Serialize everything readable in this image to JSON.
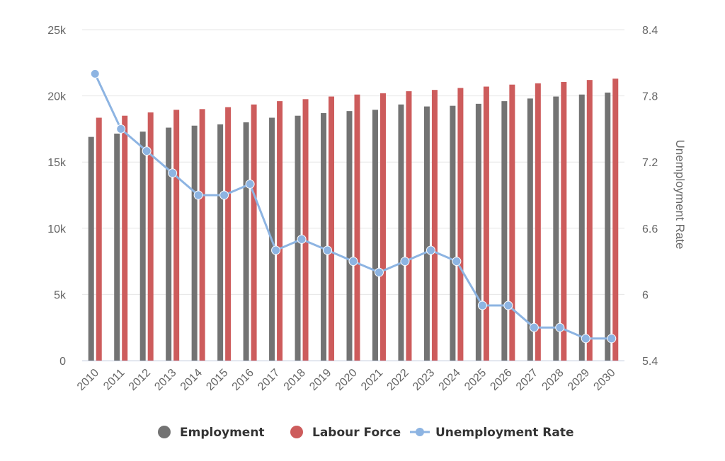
{
  "chart_data": {
    "type": "bar",
    "categories": [
      "2010",
      "2011",
      "2012",
      "2013",
      "2014",
      "2015",
      "2016",
      "2017",
      "2018",
      "2019",
      "2020",
      "2021",
      "2022",
      "2023",
      "2024",
      "2025",
      "2026",
      "2027",
      "2028",
      "2029",
      "2030"
    ],
    "series": [
      {
        "name": "Employment",
        "kind": "bar",
        "axis": "left",
        "color": "#737373",
        "values": [
          16900,
          17150,
          17300,
          17600,
          17750,
          17850,
          18000,
          18350,
          18500,
          18700,
          18850,
          18950,
          19350,
          19200,
          19250,
          19400,
          19600,
          19800,
          19950,
          20100,
          20250
        ]
      },
      {
        "name": "Labour Force",
        "kind": "bar",
        "axis": "left",
        "color": "#cd5c5c",
        "values": [
          18350,
          18500,
          18750,
          18950,
          19000,
          19150,
          19350,
          19600,
          19750,
          19950,
          20100,
          20200,
          20350,
          20450,
          20600,
          20700,
          20850,
          20950,
          21050,
          21200,
          21300
        ]
      },
      {
        "name": "Unemployment Rate",
        "kind": "line",
        "axis": "right",
        "color": "#8db4e2",
        "values": [
          8.0,
          7.5,
          7.3,
          7.1,
          6.9,
          6.9,
          7.0,
          6.4,
          6.5,
          6.4,
          6.3,
          6.2,
          6.3,
          6.4,
          6.3,
          5.9,
          5.9,
          5.7,
          5.7,
          5.6,
          5.6
        ]
      }
    ],
    "y_left": {
      "ticks": [
        0,
        5000,
        10000,
        15000,
        20000,
        25000
      ],
      "tick_labels": [
        "0",
        "5k",
        "10k",
        "15k",
        "20k",
        "25k"
      ],
      "range": [
        0,
        25000
      ]
    },
    "y_right": {
      "label": "Unemployment Rate",
      "ticks": [
        5.4,
        6,
        6.6,
        7.2,
        7.8,
        8.4
      ],
      "tick_labels": [
        "5.4",
        "6",
        "6.6",
        "7.2",
        "7.8",
        "8.4"
      ],
      "range": [
        5.4,
        8.4
      ]
    },
    "grid": true,
    "legend_position": "bottom-center",
    "x_label_rotation": "-45deg"
  }
}
